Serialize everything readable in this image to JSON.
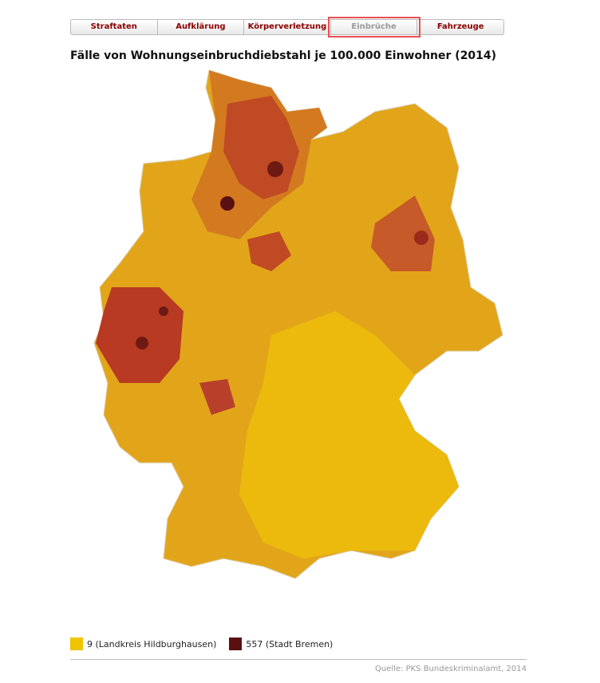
{
  "tabs": [
    "Straftaten",
    "Aufklärung",
    "Körperverletzung",
    "Einbrüche",
    "Fahrzeuge"
  ],
  "active_tab": 3,
  "title": "Fälle von Wohnungseinbruchdiebstahl je 100.000 Einwohner (2014)",
  "legend": [
    {
      "label": "9 (Landkreis Hildburghausen)",
      "color": "#eec300"
    },
    {
      "label": "557 (Stadt Bremen)",
      "color": "#5a1010"
    }
  ],
  "source": "Quelle: PKS Bundeskriminalamt, 2014"
}
